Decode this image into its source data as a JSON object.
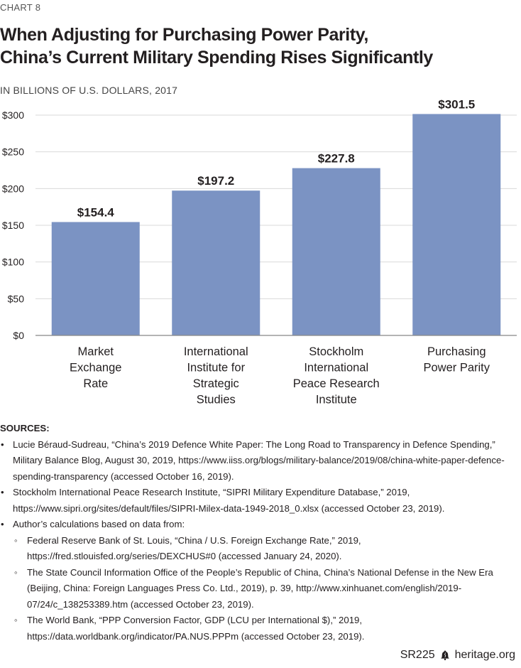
{
  "chart_label": "CHART 8",
  "title_lines": [
    "When Adjusting for Purchasing Power Parity,",
    "China’s Current Military Spending Rises Significantly"
  ],
  "units": "IN BILLIONS OF U.S. DOLLARS, 2017",
  "colors": {
    "bar": "#7b93c3",
    "grid": "#d9d9d9",
    "axis": "#888888"
  },
  "chart_data": {
    "type": "bar",
    "categories": [
      [
        "Market",
        "Exchange",
        "Rate"
      ],
      [
        "International",
        "Institute for",
        "Strategic",
        "Studies"
      ],
      [
        "Stockholm",
        "International",
        "Peace Research",
        "Institute"
      ],
      [
        "Purchasing",
        "Power Parity"
      ]
    ],
    "values": [
      154.4,
      197.2,
      227.8,
      301.5
    ],
    "data_labels": [
      "$154.4",
      "$197.2",
      "$227.8",
      "$301.5"
    ],
    "ylim": [
      0,
      300
    ],
    "yticks": [
      0,
      50,
      100,
      150,
      200,
      250,
      300
    ],
    "ytick_labels": [
      "$0",
      "$50",
      "$100",
      "$150",
      "$200",
      "$250",
      "$300"
    ],
    "grid": true
  },
  "sources": {
    "heading": "SOURCES:",
    "items": [
      {
        "level": 1,
        "text": "Lucie Béraud-Sudreau, “China’s 2019 Defence White Paper: The Long Road to Transparency in Defence Spending,” Military Balance Blog, August 30, 2019, https://www.iiss.org/blogs/military-balance/2019/08/china-white-paper-defence-spending-transparency (accessed October 16, 2019)."
      },
      {
        "level": 1,
        "text": "Stockholm International Peace Research Institute, “SIPRI Military Expenditure Database,” 2019, https://www.sipri.org/sites/default/files/SIPRI-Milex-data-1949-2018_0.xlsx (accessed October 23, 2019)."
      },
      {
        "level": 1,
        "text": "Author’s calculations based on data from:"
      },
      {
        "level": 2,
        "text": "Federal Reserve Bank of St. Louis, “China / U.S. Foreign Exchange Rate,” 2019, https://fred.stlouisfed.org/series/DEXCHUS#0 (accessed January 24, 2020)."
      },
      {
        "level": 2,
        "text": "The State Council Information Office of the People’s Republic of China, China’s National Defense in the New Era (Beijing, China: Foreign Languages Press Co. Ltd., 2019), p. 39, http://www.xinhuanet.com/english/2019-07/24/c_138253389.htm (accessed October 23, 2019)."
      },
      {
        "level": 2,
        "text": "The World Bank, “PPP Conversion Factor, GDP (LCU per International $),” 2019, https://data.worldbank.org/indicator/PA.NUS.PPPm (accessed October 23, 2019)."
      }
    ]
  },
  "footer": {
    "report": "SR225",
    "site": "heritage.org",
    "logo_icon": "liberty-bell-icon"
  }
}
